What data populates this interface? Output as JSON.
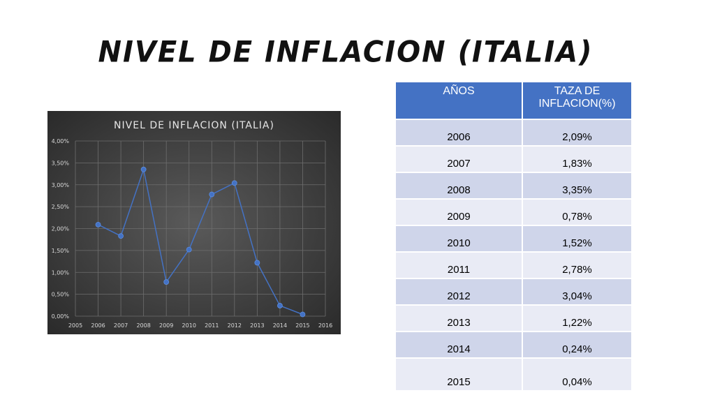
{
  "slide": {
    "title": "NIVEL DE INFLACION (ITALIA)"
  },
  "table": {
    "headers": [
      "AÑOS",
      "TAZA DE INFLACION(%)"
    ],
    "rows": [
      [
        "2006",
        "2,09%"
      ],
      [
        "2007",
        "1,83%"
      ],
      [
        "2008",
        "3,35%"
      ],
      [
        "2009",
        "0,78%"
      ],
      [
        "2010",
        "1,52%"
      ],
      [
        "2011",
        "2,78%"
      ],
      [
        "2012",
        "3,04%"
      ],
      [
        "2013",
        "1,22%"
      ],
      [
        "2014",
        "0,24%"
      ],
      [
        "2015",
        "0,04%"
      ]
    ]
  },
  "chart_data": {
    "type": "line",
    "title": "NIVEL DE INFLACION (ITALIA)",
    "xlabel": "",
    "ylabel": "",
    "x": [
      2006,
      2007,
      2008,
      2009,
      2010,
      2011,
      2012,
      2013,
      2014,
      2015
    ],
    "series": [
      {
        "values": [
          2.09,
          1.83,
          3.35,
          0.78,
          1.52,
          2.78,
          3.04,
          1.22,
          0.24,
          0.04
        ]
      }
    ],
    "xlim": [
      2005,
      2016
    ],
    "ylim": [
      0,
      4
    ],
    "x_ticks": [
      "2005",
      "2006",
      "2007",
      "2008",
      "2009",
      "2010",
      "2011",
      "2012",
      "2013",
      "2014",
      "2015",
      "2016"
    ],
    "y_ticks": [
      "0,00%",
      "0,50%",
      "1,00%",
      "1,50%",
      "2,00%",
      "2,50%",
      "3,00%",
      "3,50%",
      "4,00%"
    ],
    "grid": true,
    "colors": {
      "line": "#4472c4",
      "marker": "#4472c4",
      "grid": "#6e6e6e",
      "background": "#404040"
    }
  }
}
